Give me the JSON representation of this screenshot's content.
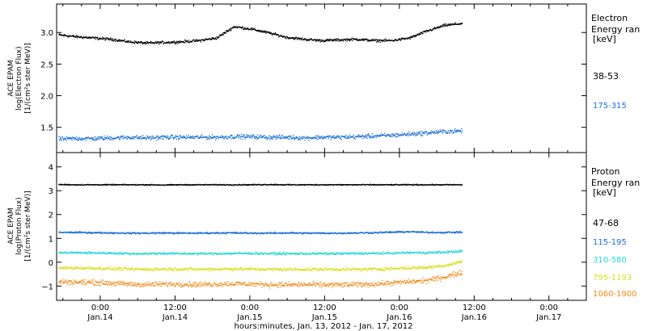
{
  "chart_data": [
    {
      "type": "scatter",
      "panel": "electron",
      "ylabel_lines": [
        "ACE EPAM",
        "log(Electron Flux)",
        "[1/(cm²s ster MeV)]"
      ],
      "yticks": [
        "1.5",
        "2.0",
        "2.5",
        "3.0"
      ],
      "ytick_values": [
        1.5,
        2.0,
        2.5,
        3.0
      ],
      "ylim": [
        1.1,
        3.45
      ],
      "legend_title": [
        "Electron",
        "Energy ran",
        "[keV]"
      ],
      "series": [
        {
          "name": "38-53",
          "color": "#000000",
          "noise": 0.03,
          "values": [
            2.97,
            2.94,
            2.92,
            2.9,
            2.86,
            2.84,
            2.85,
            2.86,
            2.88,
            2.92,
            3.1,
            3.06,
            3.0,
            2.93,
            2.9,
            2.88,
            2.89,
            2.9,
            2.88,
            2.88,
            2.92,
            3.03,
            3.12,
            3.15
          ]
        },
        {
          "name": "175-315",
          "color": "#1a6ed8",
          "noise": 0.05,
          "values": [
            1.32,
            1.33,
            1.33,
            1.34,
            1.35,
            1.34,
            1.35,
            1.35,
            1.35,
            1.35,
            1.36,
            1.36,
            1.35,
            1.35,
            1.34,
            1.35,
            1.35,
            1.36,
            1.37,
            1.38,
            1.4,
            1.42,
            1.44,
            1.45
          ]
        }
      ]
    },
    {
      "type": "scatter",
      "panel": "proton",
      "ylabel_lines": [
        "ACE EPAM",
        "log(Proton Flux)",
        "[1/(cm²s ster MeV)]"
      ],
      "yticks": [
        "−1",
        "0",
        "1",
        "2",
        "3",
        "4"
      ],
      "ytick_values": [
        -1,
        0,
        1,
        2,
        3,
        4
      ],
      "ylim": [
        -1.6,
        4.6
      ],
      "legend_title": [
        "Proton",
        "Energy ran",
        "[keV]"
      ],
      "series": [
        {
          "name": "47-68",
          "color": "#000000",
          "noise": 0.03,
          "values": [
            3.28,
            3.27,
            3.27,
            3.27,
            3.27,
            3.27,
            3.26,
            3.27,
            3.27,
            3.27,
            3.27,
            3.27,
            3.28,
            3.27,
            3.27,
            3.27,
            3.27,
            3.27,
            3.27,
            3.27,
            3.27,
            3.27,
            3.27,
            3.27
          ]
        },
        {
          "name": "115-195",
          "color": "#1a6ed8",
          "noise": 0.05,
          "values": [
            1.27,
            1.27,
            1.26,
            1.25,
            1.24,
            1.24,
            1.25,
            1.24,
            1.24,
            1.25,
            1.25,
            1.24,
            1.24,
            1.25,
            1.24,
            1.24,
            1.24,
            1.25,
            1.26,
            1.28,
            1.3,
            1.27,
            1.27,
            1.28
          ]
        },
        {
          "name": "310-580",
          "color": "#27d6d6",
          "noise": 0.07,
          "values": [
            0.42,
            0.42,
            0.41,
            0.4,
            0.38,
            0.38,
            0.39,
            0.38,
            0.38,
            0.38,
            0.39,
            0.39,
            0.38,
            0.38,
            0.38,
            0.38,
            0.38,
            0.39,
            0.39,
            0.4,
            0.42,
            0.42,
            0.44,
            0.48
          ]
        },
        {
          "name": "795-1193",
          "color": "#d8e020",
          "noise": 0.1,
          "values": [
            -0.22,
            -0.22,
            -0.23,
            -0.25,
            -0.27,
            -0.28,
            -0.27,
            -0.27,
            -0.28,
            -0.27,
            -0.26,
            -0.27,
            -0.28,
            -0.28,
            -0.28,
            -0.28,
            -0.28,
            -0.28,
            -0.27,
            -0.25,
            -0.22,
            -0.2,
            -0.12,
            0.05
          ]
        },
        {
          "name": "1060-1900",
          "color": "#f08a18",
          "noise": 0.16,
          "values": [
            -0.8,
            -0.82,
            -0.83,
            -0.86,
            -0.9,
            -0.92,
            -0.9,
            -0.9,
            -0.92,
            -0.9,
            -0.88,
            -0.9,
            -0.92,
            -0.93,
            -0.92,
            -0.93,
            -0.93,
            -0.92,
            -0.9,
            -0.85,
            -0.8,
            -0.75,
            -0.6,
            -0.4
          ]
        }
      ]
    }
  ],
  "x_axis": {
    "tick_top": [
      "0:00",
      "12:00",
      "0:00",
      "12:00",
      "0:00",
      "12:00",
      "0:00"
    ],
    "tick_bottom": [
      "Jan.14",
      "Jan.14",
      "Jan.15",
      "Jan.15",
      "Jan.16",
      "Jan.16",
      "Jan.17"
    ],
    "tick_hours": [
      0,
      12,
      24,
      36,
      48,
      60,
      72
    ],
    "xlim_hours": [
      -7,
      78
    ],
    "data_end_hours": 58,
    "xlabel": "hours:minutes, Jan. 13, 2012 - Jan. 17, 2012"
  }
}
